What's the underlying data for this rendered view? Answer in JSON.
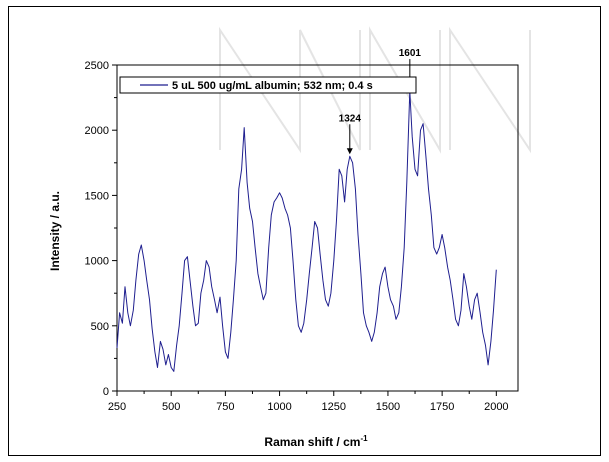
{
  "chart_data": {
    "type": "line",
    "title": "",
    "xlabel": "Raman shift / cm",
    "xlabel_sup": "-1",
    "ylabel": "Intensity / a.u.",
    "xlim": [
      250,
      2100
    ],
    "ylim": [
      0,
      2500
    ],
    "xticks": [
      250,
      500,
      750,
      1000,
      1250,
      1500,
      1750,
      2000
    ],
    "xtick_labels": [
      "250",
      "500",
      "750",
      "1000",
      "1250",
      "1500",
      "1750",
      "2000"
    ],
    "yticks": [
      0,
      500,
      1000,
      1500,
      2000,
      2500
    ],
    "ytick_labels": [
      "0",
      "500",
      "1000",
      "1500",
      "2000",
      "2500"
    ],
    "grid": false,
    "legend_position": "top-left",
    "series": [
      {
        "name": "5 uL 500 ug/mL albumin; 532 nm; 0.4 s",
        "color": "#1f1f8f",
        "x": [
          250,
          262,
          275,
          287,
          300,
          312,
          325,
          337,
          350,
          362,
          375,
          387,
          400,
          412,
          425,
          437,
          450,
          462,
          475,
          487,
          500,
          512,
          525,
          537,
          550,
          562,
          575,
          587,
          600,
          612,
          625,
          637,
          650,
          662,
          675,
          687,
          700,
          712,
          725,
          737,
          750,
          762,
          775,
          787,
          800,
          812,
          825,
          837,
          850,
          862,
          875,
          887,
          900,
          912,
          925,
          937,
          950,
          962,
          975,
          987,
          1000,
          1012,
          1025,
          1037,
          1050,
          1062,
          1075,
          1087,
          1100,
          1112,
          1125,
          1137,
          1150,
          1162,
          1175,
          1187,
          1200,
          1212,
          1225,
          1237,
          1250,
          1262,
          1275,
          1287,
          1300,
          1312,
          1324,
          1337,
          1350,
          1362,
          1375,
          1387,
          1400,
          1412,
          1425,
          1437,
          1450,
          1462,
          1475,
          1487,
          1500,
          1512,
          1525,
          1537,
          1550,
          1562,
          1575,
          1587,
          1601,
          1612,
          1625,
          1637,
          1650,
          1662,
          1675,
          1687,
          1700,
          1712,
          1725,
          1737,
          1750,
          1762,
          1775,
          1787,
          1800,
          1812,
          1825,
          1837,
          1850,
          1862,
          1875,
          1887,
          1900,
          1912,
          1925,
          1937,
          1950,
          1962,
          1975,
          1987,
          2000
        ],
        "y": [
          330,
          600,
          520,
          800,
          600,
          500,
          620,
          850,
          1050,
          1120,
          1000,
          850,
          700,
          480,
          300,
          180,
          380,
          320,
          200,
          280,
          180,
          150,
          350,
          500,
          750,
          1000,
          1030,
          850,
          650,
          500,
          520,
          750,
          850,
          1000,
          950,
          800,
          700,
          600,
          720,
          500,
          300,
          250,
          450,
          700,
          1000,
          1550,
          1700,
          2020,
          1600,
          1400,
          1300,
          1100,
          900,
          800,
          700,
          750,
          1100,
          1350,
          1450,
          1480,
          1520,
          1480,
          1400,
          1350,
          1250,
          1000,
          700,
          500,
          450,
          520,
          700,
          900,
          1100,
          1300,
          1250,
          1050,
          850,
          700,
          650,
          750,
          1000,
          1300,
          1700,
          1650,
          1450,
          1700,
          1800,
          1750,
          1550,
          1200,
          900,
          600,
          500,
          450,
          380,
          450,
          600,
          800,
          900,
          950,
          800,
          700,
          650,
          550,
          600,
          800,
          1100,
          1600,
          2300,
          1950,
          1700,
          1650,
          2000,
          2050,
          1800,
          1550,
          1350,
          1100,
          1050,
          1100,
          1200,
          1100,
          950,
          850,
          700,
          550,
          500,
          620,
          900,
          800,
          650,
          550,
          700,
          750,
          600,
          450,
          350,
          200,
          380,
          620,
          930
        ]
      }
    ],
    "annotations": [
      {
        "label": "1324",
        "x": 1324,
        "y": 1800
      },
      {
        "label": "1601",
        "x": 1601,
        "y": 2300
      }
    ]
  },
  "colors": {
    "line": "#1f1f8f",
    "axis": "#000000",
    "watermark": "#e4e4e4"
  }
}
